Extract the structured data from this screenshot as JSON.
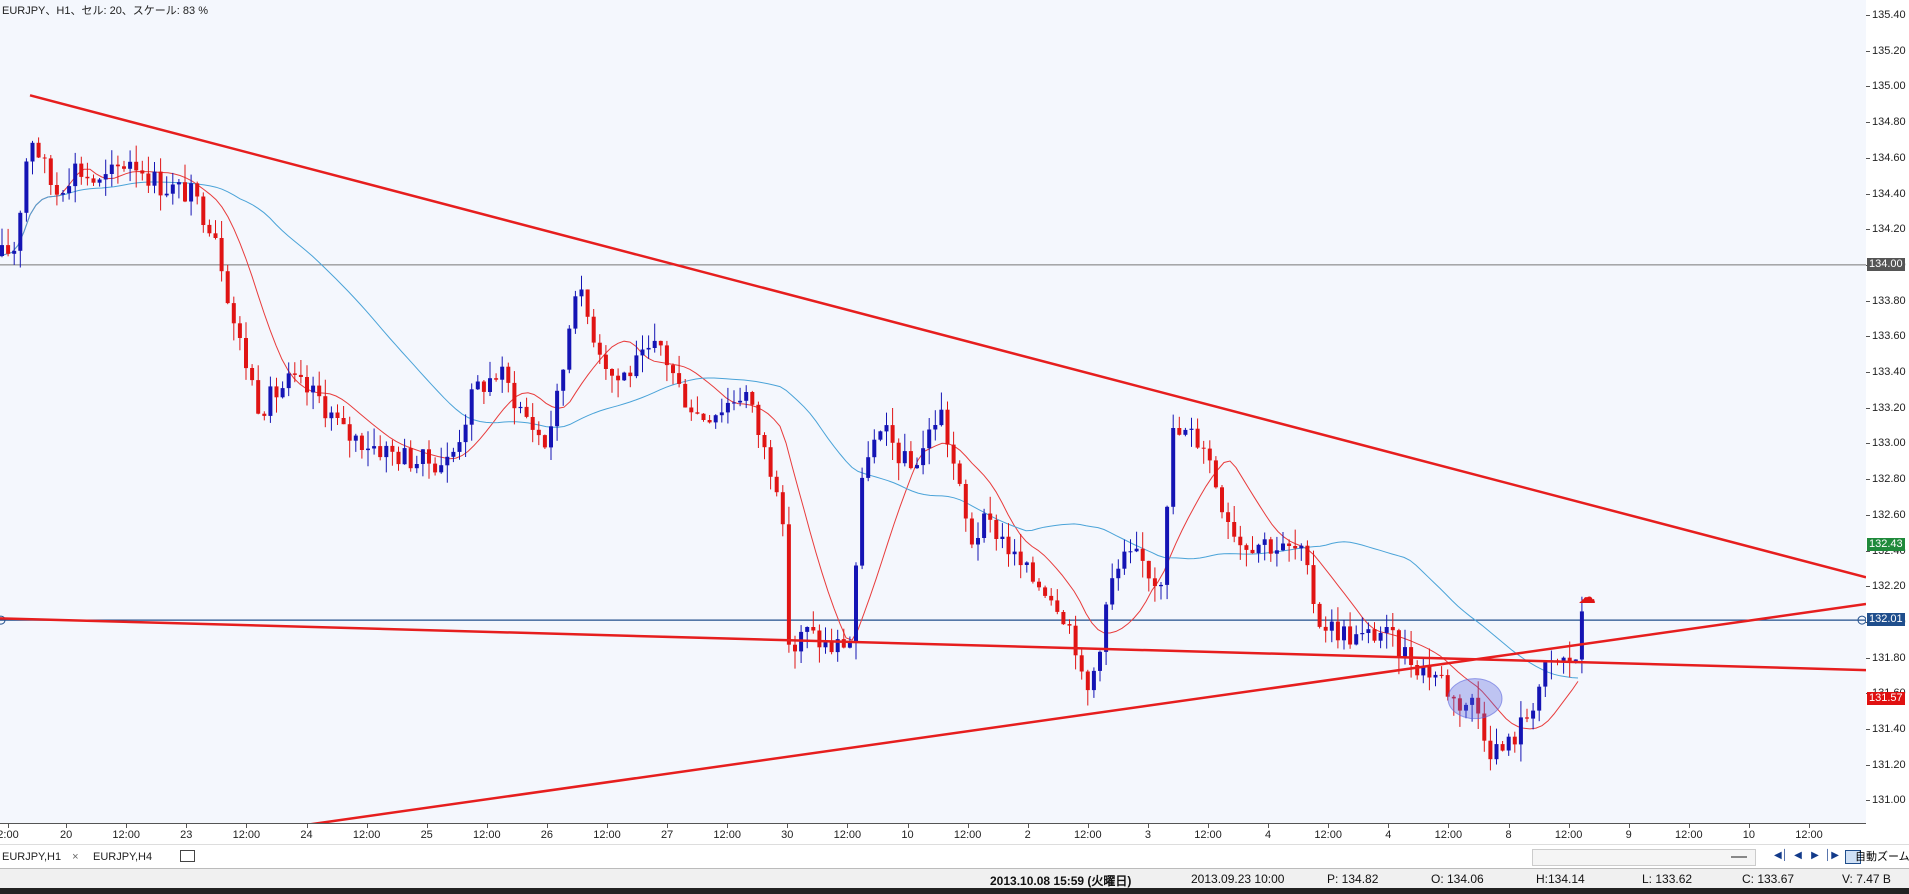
{
  "chart": {
    "title": "EURJPY、H1、セル: 20、スケール: 83 %",
    "price_ticks": [
      "135.40",
      "135.20",
      "135.00",
      "134.80",
      "134.60",
      "134.40",
      "134.20",
      "134.00",
      "133.80",
      "133.60",
      "133.40",
      "133.20",
      "133.00",
      "132.80",
      "132.60",
      "132.40",
      "132.20",
      "132.00",
      "131.80",
      "131.60",
      "131.40",
      "131.20",
      "131.00"
    ],
    "badges": [
      {
        "label": "134.00",
        "color": "#555555"
      },
      {
        "label": "132.43",
        "color": "#1f8a3b"
      },
      {
        "label": "132.01",
        "color": "#1f4e8c"
      },
      {
        "label": "131.57",
        "color": "#e01010"
      }
    ],
    "time_labels": [
      "2:00",
      "20",
      "12:00",
      "23",
      "12:00",
      "24",
      "12:00",
      "25",
      "12:00",
      "26",
      "12:00",
      "27",
      "12:00",
      "30",
      "12:00",
      "10",
      "12:00",
      "2",
      "12:00",
      "3",
      "12:00",
      "4",
      "12:00",
      "4",
      "12:00",
      "8",
      "12:00",
      "9",
      "12:00",
      "10",
      "12:00"
    ],
    "colors": {
      "bull": "#1414b4",
      "bear": "#e01414",
      "trendline": "#e61e1e",
      "ma_fast": "#e83c3c",
      "ma_mid": "#4aa3d8",
      "ma_slow": "#3aa67a",
      "background": "#f4f7fd"
    }
  },
  "tabs": [
    {
      "label": "EURJPY,H1",
      "close": "×"
    },
    {
      "label": "EURJPY,H4"
    }
  ],
  "zoom_label": "自動ズーム",
  "status": {
    "datetime": "2013.10.08 15:59 (火曜日)",
    "cursor_time": "2013.09.23 10:00",
    "price": "P: 134.82",
    "open": "O: 134.06",
    "high": "H:134.14",
    "low": "L: 133.62",
    "close": "C: 133.67",
    "volume": "V: 7.47 B"
  }
}
